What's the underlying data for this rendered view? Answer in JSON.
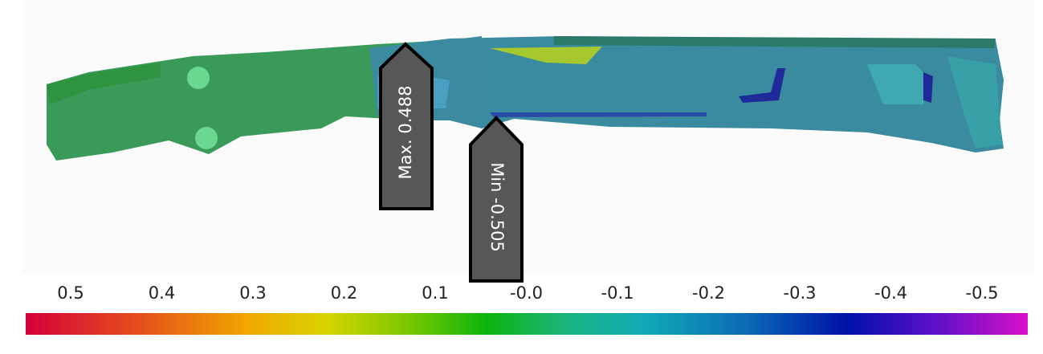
{
  "callouts": [
    {
      "label": "Max. 0.488"
    },
    {
      "label": "Min -0.505"
    }
  ],
  "colorbar": {
    "labels": [
      "0.5",
      "0.4",
      "0.3",
      "0.2",
      "0.1",
      "-0.0",
      "-0.1",
      "-0.2",
      "-0.3",
      "-0.4",
      "-0.5"
    ]
  }
}
